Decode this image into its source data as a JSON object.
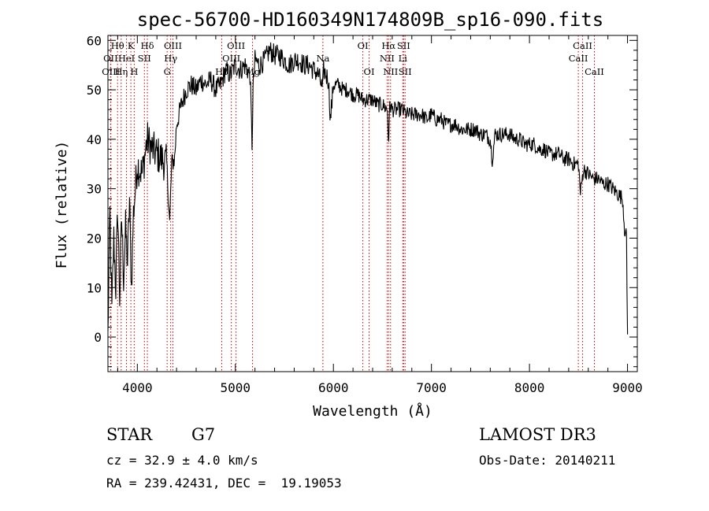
{
  "chart_data": {
    "type": "line",
    "title": "spec-56700-HD160349N174809B_sp16-090.fits",
    "xlabel": "Wavelength (Å)",
    "ylabel": "Flux (relative)",
    "xlim": [
      3700,
      9100
    ],
    "ylim": [
      -7,
      61
    ],
    "xticks": [
      4000,
      5000,
      6000,
      7000,
      8000,
      9000
    ],
    "yticks": [
      0,
      10,
      20,
      30,
      40,
      50,
      60
    ],
    "line_color": "#000000",
    "marker_color": "#cc0000",
    "spectrum": {
      "x": [
        3700,
        3720,
        3740,
        3760,
        3780,
        3800,
        3820,
        3840,
        3860,
        3880,
        3900,
        3920,
        3940,
        3960,
        3980,
        4000,
        4050,
        4100,
        4150,
        4200,
        4250,
        4300,
        4330,
        4350,
        4380,
        4400,
        4450,
        4500,
        4550,
        4600,
        4650,
        4700,
        4750,
        4800,
        4850,
        4900,
        4950,
        5000,
        5050,
        5100,
        5150,
        5170,
        5180,
        5200,
        5250,
        5300,
        5350,
        5400,
        5450,
        5500,
        5550,
        5600,
        5650,
        5700,
        5750,
        5800,
        5850,
        5890,
        5900,
        5950,
        5970,
        6000,
        6050,
        6100,
        6150,
        6200,
        6250,
        6300,
        6350,
        6400,
        6450,
        6500,
        6550,
        6563,
        6575,
        6600,
        6650,
        6700,
        6750,
        6800,
        6850,
        6900,
        6950,
        7000,
        7050,
        7100,
        7150,
        7200,
        7250,
        7300,
        7350,
        7400,
        7450,
        7500,
        7550,
        7600,
        7620,
        7650,
        7700,
        7750,
        7800,
        7850,
        7900,
        7950,
        8000,
        8050,
        8100,
        8150,
        8200,
        8250,
        8300,
        8350,
        8400,
        8450,
        8500,
        8520,
        8550,
        8600,
        8650,
        8700,
        8750,
        8800,
        8850,
        8900,
        8950,
        8970,
        8990,
        9000
      ],
      "y": [
        0,
        25,
        5,
        20,
        10,
        26,
        8,
        24,
        12,
        22,
        15,
        28,
        10,
        25,
        30,
        35,
        33,
        40,
        38,
        37,
        36,
        35,
        23,
        35,
        36,
        43,
        47,
        50,
        51,
        50,
        52,
        51,
        52,
        50,
        51,
        54,
        53,
        55,
        54,
        55,
        53,
        39,
        50,
        56,
        55,
        56,
        58,
        57,
        57,
        56,
        55,
        56,
        56,
        55,
        55,
        54,
        53,
        50,
        54,
        52,
        44,
        51,
        51,
        50,
        50,
        49,
        49,
        48,
        48,
        48,
        47,
        47,
        46,
        39,
        47,
        46,
        46,
        46,
        45,
        45,
        45,
        45,
        44,
        45,
        44,
        44,
        43,
        43,
        43,
        42,
        42,
        42,
        42,
        41,
        41,
        40,
        36,
        41,
        41,
        41,
        41,
        40,
        40,
        39,
        39,
        39,
        38,
        38,
        37,
        37,
        37,
        36,
        36,
        35,
        35,
        29,
        34,
        33,
        32,
        32,
        31,
        31,
        30,
        29,
        28,
        22,
        20,
        0
      ]
    },
    "lines": [
      {
        "label": "Hθ",
        "x": 3798,
        "row": 1
      },
      {
        "label": "OII",
        "x": 3727,
        "row": 2
      },
      {
        "label": "OIII",
        "x": 3730,
        "row": 3
      },
      {
        "label": "K",
        "x": 3934,
        "row": 1
      },
      {
        "label": "HeI",
        "x": 3889,
        "row": 2
      },
      {
        "label": "Hη",
        "x": 3835,
        "row": 3
      },
      {
        "label": "SII",
        "x": 4072,
        "row": 2
      },
      {
        "label": "H",
        "x": 3968,
        "row": 3
      },
      {
        "label": "Hδ",
        "x": 4102,
        "row": 1
      },
      {
        "label": "OIII",
        "x": 4363,
        "row": 1
      },
      {
        "label": "Hγ",
        "x": 4340,
        "row": 2
      },
      {
        "label": "G",
        "x": 4304,
        "row": 3
      },
      {
        "label": "OIII",
        "x": 5007,
        "row": 1
      },
      {
        "label": "OIII",
        "x": 4959,
        "row": 2
      },
      {
        "label": "Hβ",
        "x": 4861,
        "row": 3
      },
      {
        "label": "Mg",
        "x": 5175,
        "row": 3
      },
      {
        "label": "Na",
        "x": 5893,
        "row": 2
      },
      {
        "label": "OI",
        "x": 6300,
        "row": 1
      },
      {
        "label": "OI",
        "x": 6364,
        "row": 3
      },
      {
        "label": "Hα",
        "x": 6563,
        "row": 1
      },
      {
        "label": "SII",
        "x": 6716,
        "row": 1
      },
      {
        "label": "NII",
        "x": 6548,
        "row": 2
      },
      {
        "label": "Li",
        "x": 6708,
        "row": 2
      },
      {
        "label": "NII",
        "x": 6583,
        "row": 3
      },
      {
        "label": "SII",
        "x": 6731,
        "row": 3
      },
      {
        "label": "CaII",
        "x": 8542,
        "row": 1
      },
      {
        "label": "CaII",
        "x": 8498,
        "row": 2
      },
      {
        "label": "CaII",
        "x": 8662,
        "row": 3
      }
    ]
  },
  "info": {
    "class": "STAR",
    "subclass": "G7",
    "survey": "LAMOST DR3",
    "cz": "cz = 32.9 ± 4.0 km/s",
    "obs_date": "Obs-Date: 20140211",
    "coords": "RA = 239.42431, DEC =  19.19053"
  }
}
